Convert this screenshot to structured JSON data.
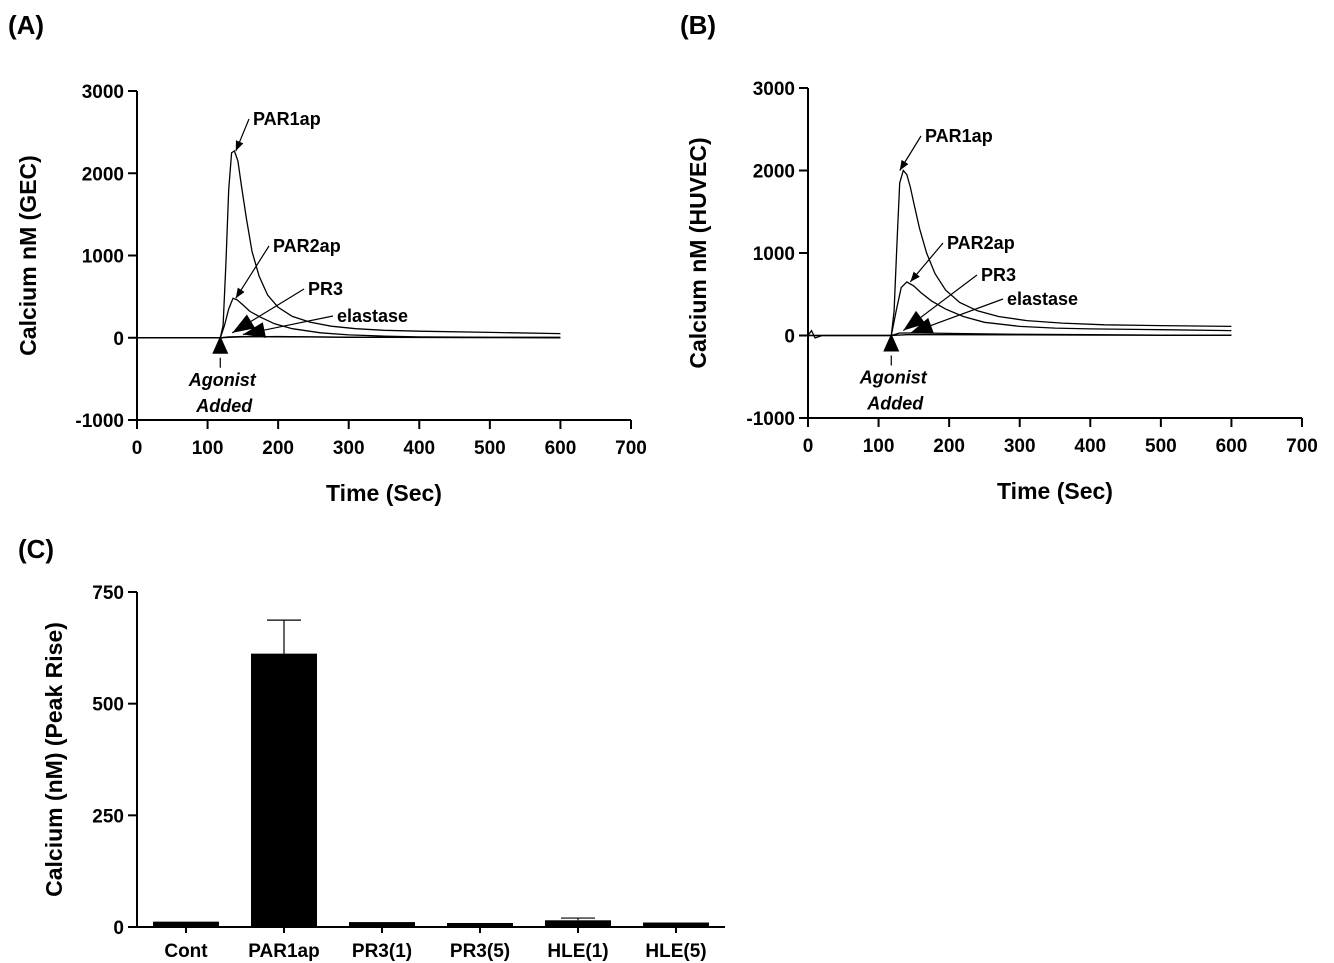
{
  "chart_data": [
    {
      "panel": "(A)",
      "type": "line",
      "title": "",
      "xlabel": "Time (Sec)",
      "ylabel": "Calcium nM (GEC)",
      "xlim": [
        0,
        700
      ],
      "ylim": [
        -1000,
        3000
      ],
      "xticks": [
        0,
        100,
        200,
        300,
        400,
        500,
        600,
        700
      ],
      "yticks": [
        -1000,
        0,
        1000,
        2000,
        3000
      ],
      "grid": false,
      "series": [
        {
          "name": "PAR1ap",
          "x": [
            0,
            100,
            118,
            122,
            126,
            130,
            134,
            138,
            143,
            148,
            155,
            163,
            173,
            185,
            200,
            220,
            245,
            275,
            310,
            350,
            400,
            500,
            600
          ],
          "y": [
            0,
            0,
            0,
            150,
            900,
            1800,
            2250,
            2270,
            2150,
            1850,
            1450,
            1050,
            750,
            520,
            370,
            260,
            190,
            140,
            110,
            90,
            80,
            65,
            50
          ]
        },
        {
          "name": "PAR2ap",
          "x": [
            0,
            118,
            124,
            130,
            136,
            142,
            150,
            160,
            175,
            195,
            220,
            260,
            300,
            350,
            400,
            500,
            600
          ],
          "y": [
            0,
            0,
            150,
            350,
            480,
            460,
            400,
            320,
            250,
            170,
            110,
            60,
            35,
            20,
            10,
            5,
            5
          ]
        },
        {
          "name": "PR3",
          "x": [
            0,
            118,
            130,
            150,
            200,
            300,
            400,
            500,
            600
          ],
          "y": [
            0,
            0,
            10,
            15,
            12,
            8,
            5,
            3,
            2
          ]
        },
        {
          "name": "elastase",
          "x": [
            0,
            118,
            130,
            150,
            200,
            250,
            300,
            400,
            500,
            600
          ],
          "y": [
            0,
            0,
            5,
            10,
            15,
            10,
            5,
            3,
            2,
            0
          ]
        }
      ],
      "annotations": [
        {
          "text": "PAR1ap",
          "at": [
            140,
            2270
          ]
        },
        {
          "text": "PAR2ap",
          "at": [
            140,
            480
          ]
        },
        {
          "text": "PR3",
          "at": [
            135,
            60
          ]
        },
        {
          "text": "elastase",
          "at": [
            150,
            40
          ]
        }
      ],
      "marker_label": [
        "Agonist",
        "Added"
      ],
      "marker_x": 118
    },
    {
      "panel": "(B)",
      "type": "line",
      "title": "",
      "xlabel": "Time (Sec)",
      "ylabel": "Calcium nM (HUVEC)",
      "xlim": [
        0,
        700
      ],
      "ylim": [
        -1000,
        3000
      ],
      "xticks": [
        0,
        100,
        200,
        300,
        400,
        500,
        600,
        700
      ],
      "yticks": [
        -1000,
        0,
        1000,
        2000,
        3000
      ],
      "grid": false,
      "series": [
        {
          "name": "PAR1ap",
          "x": [
            0,
            5,
            10,
            20,
            100,
            118,
            122,
            126,
            130,
            135,
            140,
            145,
            150,
            158,
            168,
            180,
            195,
            215,
            240,
            270,
            310,
            360,
            420,
            500,
            600
          ],
          "y": [
            0,
            60,
            -30,
            0,
            0,
            0,
            300,
            1100,
            1850,
            2000,
            1950,
            1800,
            1600,
            1300,
            1000,
            750,
            550,
            400,
            300,
            230,
            180,
            150,
            130,
            120,
            110
          ]
        },
        {
          "name": "PAR2ap",
          "x": [
            0,
            118,
            125,
            132,
            140,
            150,
            160,
            175,
            195,
            220,
            250,
            300,
            350,
            400,
            500,
            600
          ],
          "y": [
            0,
            0,
            300,
            580,
            650,
            600,
            520,
            420,
            320,
            230,
            160,
            110,
            90,
            80,
            70,
            60
          ]
        },
        {
          "name": "PR3",
          "x": [
            0,
            118,
            130,
            160,
            200,
            250,
            300,
            400,
            500,
            600
          ],
          "y": [
            0,
            0,
            30,
            30,
            25,
            20,
            15,
            10,
            5,
            5
          ]
        },
        {
          "name": "elastase",
          "x": [
            0,
            118,
            140,
            200,
            300,
            400,
            500,
            600
          ],
          "y": [
            0,
            0,
            10,
            10,
            8,
            5,
            3,
            2
          ]
        }
      ],
      "annotations": [
        {
          "text": "PAR1ap",
          "at": [
            130,
            2000
          ]
        },
        {
          "text": "PAR2ap",
          "at": [
            145,
            650
          ]
        },
        {
          "text": "PR3",
          "at": [
            135,
            60
          ]
        },
        {
          "text": "elastase",
          "at": [
            145,
            30
          ]
        }
      ],
      "marker_label": [
        "Agonist",
        "Added"
      ],
      "marker_x": 118
    },
    {
      "panel": "(C)",
      "type": "bar",
      "title": "",
      "xlabel": "",
      "ylabel": "Calcium (nM) (Peak Rise)",
      "ylim": [
        0,
        750
      ],
      "yticks": [
        0,
        250,
        500,
        750
      ],
      "grid": false,
      "categories": [
        "Cont",
        "PAR1ap",
        "PR3(1)",
        "PR3(5)",
        "HLE(1)",
        "HLE(5)"
      ],
      "values": [
        12,
        612,
        11,
        9,
        15,
        10
      ],
      "errors": [
        0,
        75,
        0,
        0,
        5,
        0
      ]
    }
  ]
}
